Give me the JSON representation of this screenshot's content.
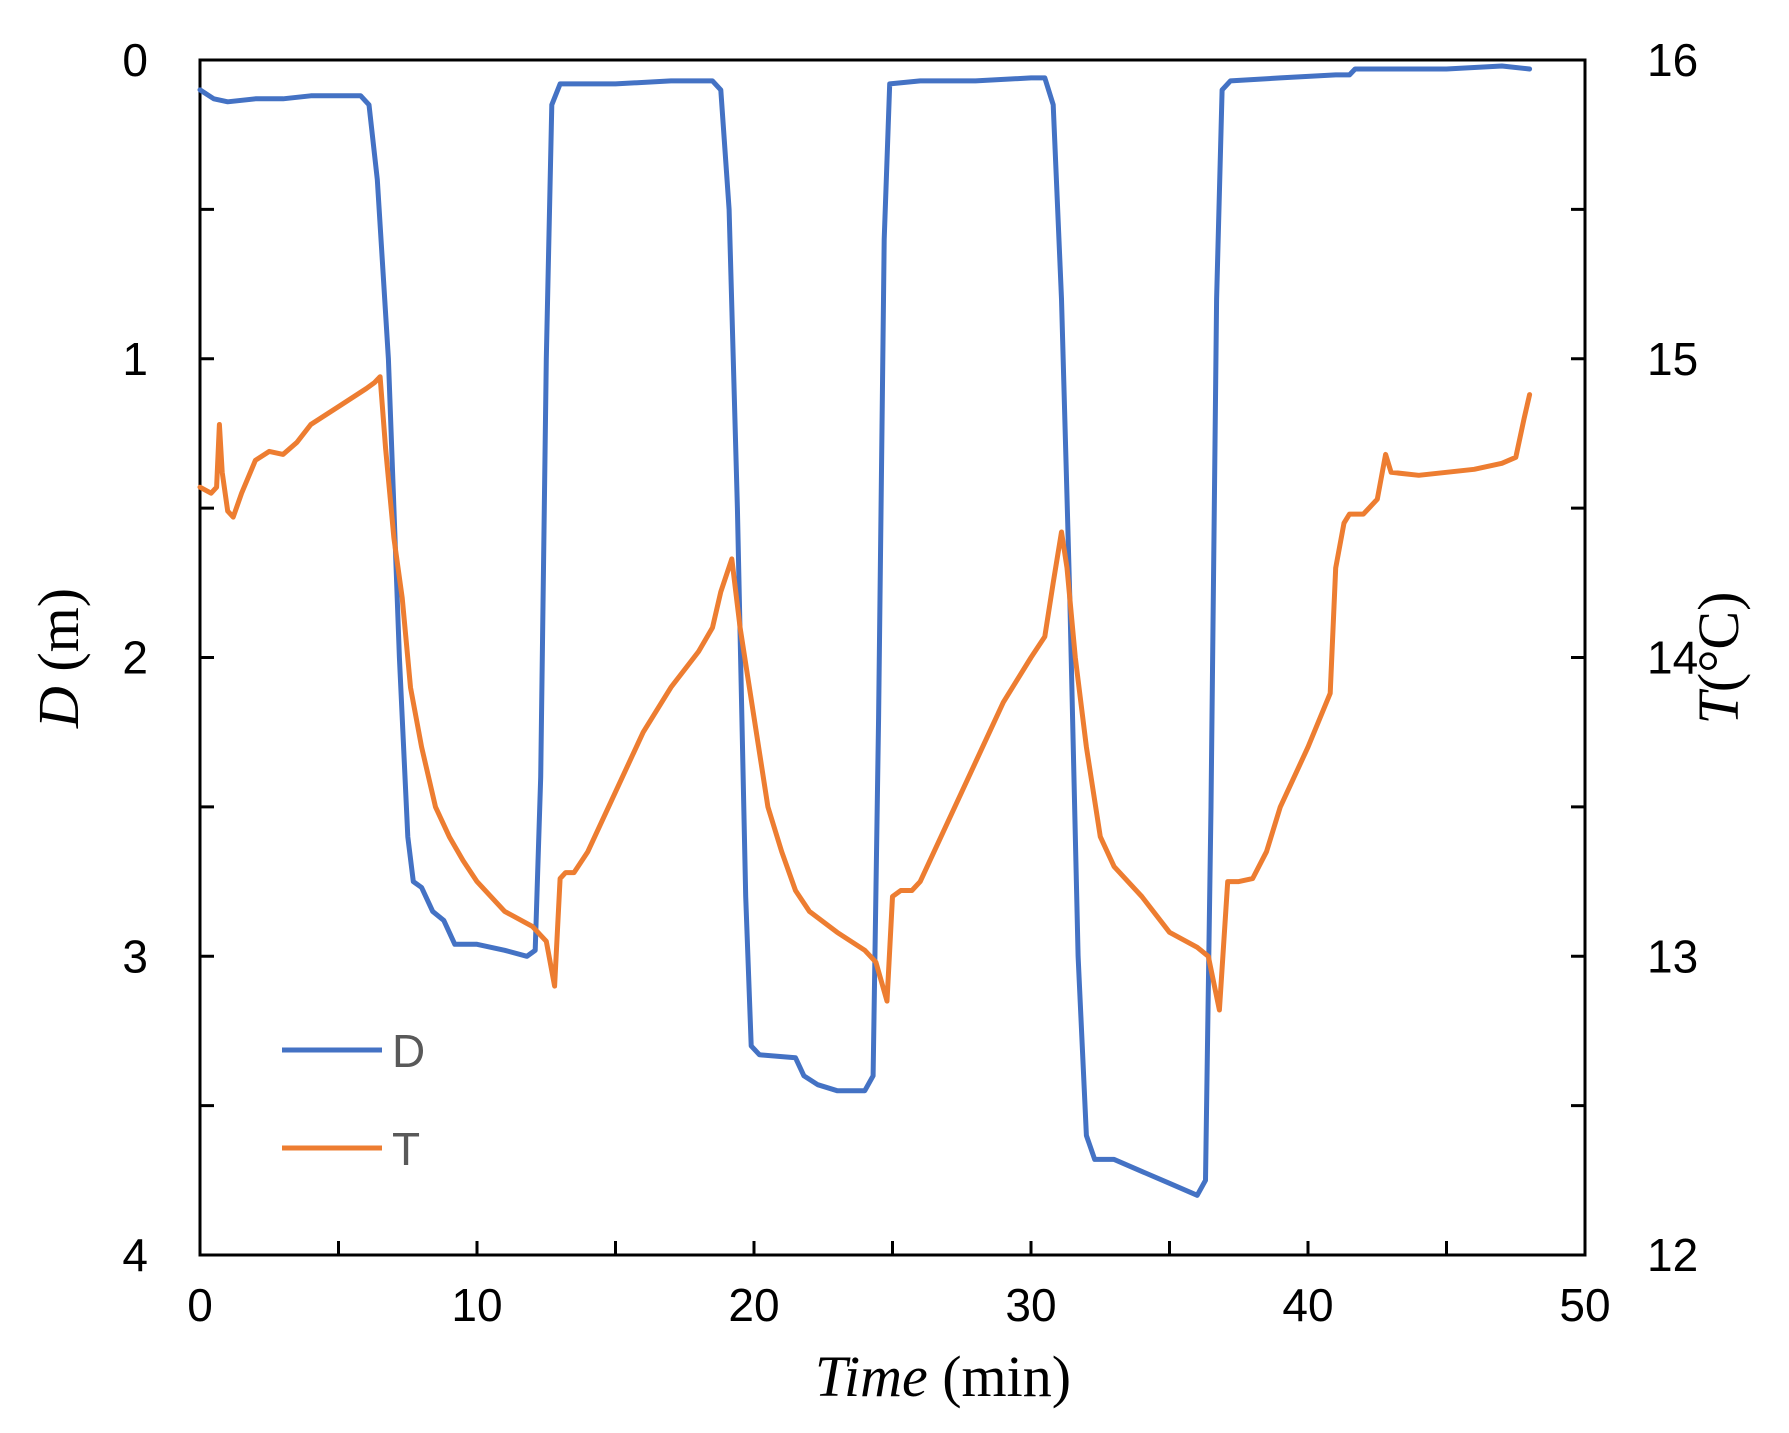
{
  "chart_data": {
    "type": "line",
    "xlabel_italic": "Time",
    "xlabel_unit": " (min)",
    "ylabel_left_italic": "D",
    "ylabel_left_unit": " (m)",
    "ylabel_right_italic": "T",
    "ylabel_right_unit": "(°C)",
    "xlim": [
      0,
      50
    ],
    "xticks": [
      0,
      10,
      20,
      30,
      40,
      50
    ],
    "ylim_left": [
      0,
      4
    ],
    "left_inverted": true,
    "yticks_left": [
      0,
      1,
      2,
      3,
      4
    ],
    "ylim_right": [
      12,
      16
    ],
    "yticks_right": [
      12,
      13,
      14,
      15,
      16
    ],
    "grid": false,
    "legend_position": "bottom-left",
    "series": [
      {
        "name": "D",
        "axis": "left",
        "color": "#4472C4",
        "points": [
          [
            0,
            0.1
          ],
          [
            0.5,
            0.13
          ],
          [
            1,
            0.14
          ],
          [
            2,
            0.13
          ],
          [
            3,
            0.13
          ],
          [
            4,
            0.12
          ],
          [
            5,
            0.12
          ],
          [
            5.8,
            0.12
          ],
          [
            6.1,
            0.15
          ],
          [
            6.4,
            0.4
          ],
          [
            6.8,
            1.0
          ],
          [
            7.2,
            2.0
          ],
          [
            7.5,
            2.6
          ],
          [
            7.7,
            2.75
          ],
          [
            8,
            2.77
          ],
          [
            8.4,
            2.85
          ],
          [
            8.8,
            2.88
          ],
          [
            9.2,
            2.96
          ],
          [
            10,
            2.96
          ],
          [
            11,
            2.98
          ],
          [
            11.8,
            3.0
          ],
          [
            12.1,
            2.98
          ],
          [
            12.3,
            2.4
          ],
          [
            12.5,
            1.0
          ],
          [
            12.7,
            0.15
          ],
          [
            13,
            0.08
          ],
          [
            15,
            0.08
          ],
          [
            17,
            0.07
          ],
          [
            18.5,
            0.07
          ],
          [
            18.8,
            0.1
          ],
          [
            19.1,
            0.5
          ],
          [
            19.4,
            1.5
          ],
          [
            19.7,
            2.8
          ],
          [
            19.9,
            3.3
          ],
          [
            20.2,
            3.33
          ],
          [
            21.5,
            3.34
          ],
          [
            21.8,
            3.4
          ],
          [
            22.3,
            3.43
          ],
          [
            23,
            3.45
          ],
          [
            24,
            3.45
          ],
          [
            24.3,
            3.4
          ],
          [
            24.5,
            2.2
          ],
          [
            24.7,
            0.6
          ],
          [
            24.9,
            0.08
          ],
          [
            26,
            0.07
          ],
          [
            28,
            0.07
          ],
          [
            30,
            0.06
          ],
          [
            30.5,
            0.06
          ],
          [
            30.8,
            0.15
          ],
          [
            31.1,
            0.8
          ],
          [
            31.4,
            1.8
          ],
          [
            31.7,
            3.0
          ],
          [
            32,
            3.6
          ],
          [
            32.3,
            3.68
          ],
          [
            33,
            3.68
          ],
          [
            34,
            3.72
          ],
          [
            35,
            3.76
          ],
          [
            36,
            3.8
          ],
          [
            36.3,
            3.75
          ],
          [
            36.5,
            2.5
          ],
          [
            36.7,
            0.8
          ],
          [
            36.9,
            0.1
          ],
          [
            37.2,
            0.07
          ],
          [
            39,
            0.06
          ],
          [
            41,
            0.05
          ],
          [
            41.5,
            0.05
          ],
          [
            41.7,
            0.03
          ],
          [
            43,
            0.03
          ],
          [
            45,
            0.03
          ],
          [
            47,
            0.02
          ],
          [
            48,
            0.03
          ]
        ]
      },
      {
        "name": "T",
        "axis": "right",
        "color": "#ED7D31",
        "points": [
          [
            0,
            14.57
          ],
          [
            0.4,
            14.55
          ],
          [
            0.6,
            14.57
          ],
          [
            0.7,
            14.78
          ],
          [
            0.8,
            14.62
          ],
          [
            1.0,
            14.49
          ],
          [
            1.2,
            14.47
          ],
          [
            1.5,
            14.55
          ],
          [
            2.0,
            14.66
          ],
          [
            2.5,
            14.69
          ],
          [
            3.0,
            14.68
          ],
          [
            3.5,
            14.72
          ],
          [
            4.0,
            14.78
          ],
          [
            5.0,
            14.84
          ],
          [
            6.0,
            14.9
          ],
          [
            6.3,
            14.92
          ],
          [
            6.5,
            14.94
          ],
          [
            6.7,
            14.7
          ],
          [
            7.0,
            14.4
          ],
          [
            7.3,
            14.2
          ],
          [
            7.6,
            13.9
          ],
          [
            8.0,
            13.7
          ],
          [
            8.5,
            13.5
          ],
          [
            9.0,
            13.4
          ],
          [
            9.5,
            13.32
          ],
          [
            10.0,
            13.25
          ],
          [
            11.0,
            13.15
          ],
          [
            12.0,
            13.1
          ],
          [
            12.5,
            13.05
          ],
          [
            12.8,
            12.9
          ],
          [
            13.0,
            13.26
          ],
          [
            13.2,
            13.28
          ],
          [
            13.5,
            13.28
          ],
          [
            14.0,
            13.35
          ],
          [
            15.0,
            13.55
          ],
          [
            16.0,
            13.75
          ],
          [
            17.0,
            13.9
          ],
          [
            18.0,
            14.02
          ],
          [
            18.5,
            14.1
          ],
          [
            18.8,
            14.22
          ],
          [
            19.2,
            14.33
          ],
          [
            19.5,
            14.1
          ],
          [
            20.0,
            13.8
          ],
          [
            20.5,
            13.5
          ],
          [
            21.0,
            13.35
          ],
          [
            21.5,
            13.22
          ],
          [
            22.0,
            13.15
          ],
          [
            23.0,
            13.08
          ],
          [
            24.0,
            13.02
          ],
          [
            24.4,
            12.98
          ],
          [
            24.8,
            12.85
          ],
          [
            25.0,
            13.2
          ],
          [
            25.3,
            13.22
          ],
          [
            25.7,
            13.22
          ],
          [
            26.0,
            13.25
          ],
          [
            27.0,
            13.45
          ],
          [
            28.0,
            13.65
          ],
          [
            29.0,
            13.85
          ],
          [
            30.0,
            14.0
          ],
          [
            30.5,
            14.07
          ],
          [
            30.8,
            14.25
          ],
          [
            31.1,
            14.42
          ],
          [
            31.3,
            14.3
          ],
          [
            31.6,
            14.0
          ],
          [
            32.0,
            13.7
          ],
          [
            32.5,
            13.4
          ],
          [
            33.0,
            13.3
          ],
          [
            34.0,
            13.2
          ],
          [
            35.0,
            13.08
          ],
          [
            36.0,
            13.03
          ],
          [
            36.4,
            13.0
          ],
          [
            36.8,
            12.82
          ],
          [
            37.1,
            13.25
          ],
          [
            37.5,
            13.25
          ],
          [
            38.0,
            13.26
          ],
          [
            38.5,
            13.35
          ],
          [
            39.0,
            13.5
          ],
          [
            40.0,
            13.7
          ],
          [
            40.8,
            13.88
          ],
          [
            41.0,
            14.3
          ],
          [
            41.3,
            14.45
          ],
          [
            41.5,
            14.48
          ],
          [
            42.0,
            14.48
          ],
          [
            42.5,
            14.53
          ],
          [
            42.8,
            14.68
          ],
          [
            43.0,
            14.62
          ],
          [
            44.0,
            14.61
          ],
          [
            45.0,
            14.62
          ],
          [
            46.0,
            14.63
          ],
          [
            47.0,
            14.65
          ],
          [
            47.5,
            14.67
          ],
          [
            47.8,
            14.8
          ],
          [
            48.0,
            14.88
          ]
        ]
      }
    ]
  }
}
